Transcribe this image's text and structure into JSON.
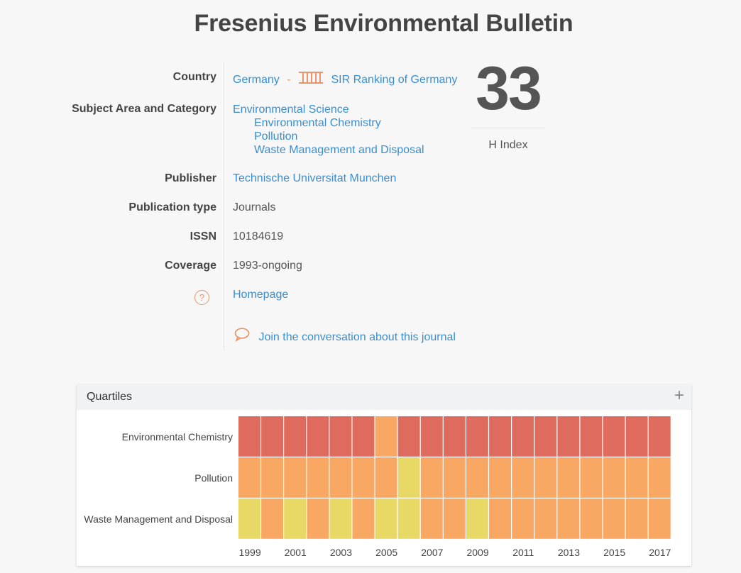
{
  "title": "Fresenius Environmental Bulletin",
  "info": {
    "country_label": "Country",
    "country_value": "Germany",
    "country_sep": "-",
    "sir_link": "SIR Ranking of Germany",
    "subject_label": "Subject Area and Category",
    "subject_area": "Environmental Science",
    "categories": [
      "Environmental Chemistry",
      "Pollution",
      "Waste Management and Disposal"
    ],
    "publisher_label": "Publisher",
    "publisher_value": "Technische Universitat Munchen",
    "pubtype_label": "Publication type",
    "pubtype_value": "Journals",
    "issn_label": "ISSN",
    "issn_value": "10184619",
    "coverage_label": "Coverage",
    "coverage_value": "1993-ongoing",
    "homepage_link": "Homepage",
    "conversation_link": "Join the conversation about this journal",
    "icons": {
      "ranking": "ranking-bars-icon",
      "help": "help-circle-icon",
      "chat": "chat-bubble-icon"
    }
  },
  "hindex": {
    "value": "33",
    "label": "H Index"
  },
  "quartiles": {
    "title": "Quartiles",
    "expand_icon": "plus-icon",
    "chart_data": {
      "type": "heatmap",
      "rows": [
        "Environmental Chemistry",
        "Pollution",
        "Waste Management and Disposal"
      ],
      "years": [
        1999,
        2000,
        2001,
        2002,
        2003,
        2004,
        2005,
        2006,
        2007,
        2008,
        2009,
        2010,
        2011,
        2012,
        2013,
        2014,
        2015,
        2016,
        2017
      ],
      "tick_labels": [
        "1999",
        "2001",
        "2003",
        "2005",
        "2007",
        "2009",
        "2011",
        "2013",
        "2015",
        "2017"
      ],
      "values": [
        [
          "Q3",
          "Q3",
          "Q3",
          "Q3",
          "Q3",
          "Q3",
          "Q2",
          "Q3",
          "Q3",
          "Q3",
          "Q3",
          "Q3",
          "Q3",
          "Q3",
          "Q3",
          "Q3",
          "Q3",
          "Q3",
          "Q3"
        ],
        [
          "Q2",
          "Q2",
          "Q2",
          "Q2",
          "Q2",
          "Q2",
          "Q2",
          "Q1",
          "Q2",
          "Q2",
          "Q2",
          "Q2",
          "Q2",
          "Q2",
          "Q2",
          "Q2",
          "Q2",
          "Q2",
          "Q2"
        ],
        [
          "Q1",
          "Q2",
          "Q1",
          "Q2",
          "Q1",
          "Q2",
          "Q1",
          "Q1",
          "Q2",
          "Q2",
          "Q1",
          "Q2",
          "Q2",
          "Q2",
          "Q2",
          "Q2",
          "Q2",
          "Q2",
          "Q2"
        ]
      ],
      "colors": {
        "Q1": "#e8d866",
        "Q2": "#f8a862",
        "Q3": "#df6b5e"
      }
    }
  }
}
